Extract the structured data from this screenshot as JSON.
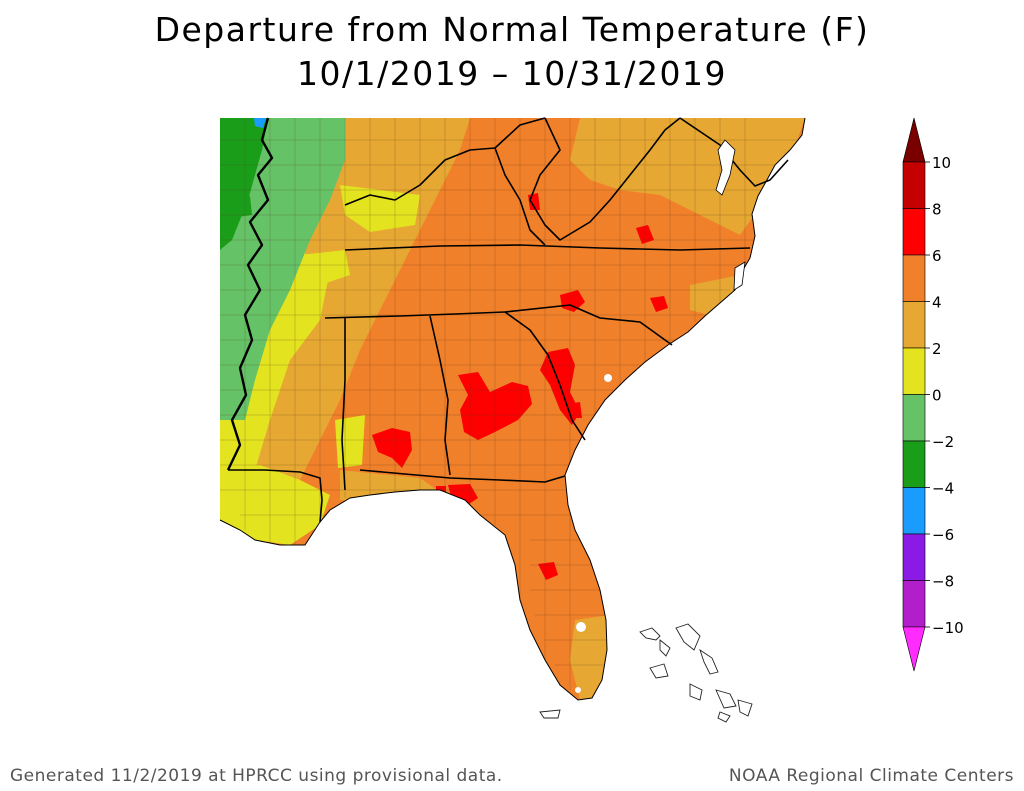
{
  "title": "Departure from Normal Temperature (F)",
  "date_range": "10/1/2019 – 10/31/2019",
  "legend": {
    "bins": [
      {
        "from": 8,
        "to": 10,
        "color": "#c40000"
      },
      {
        "from": 6,
        "to": 8,
        "color": "#ff0000"
      },
      {
        "from": 4,
        "to": 6,
        "color": "#f0802a"
      },
      {
        "from": 2,
        "to": 4,
        "color": "#e6a832"
      },
      {
        "from": 0,
        "to": 2,
        "color": "#e3e320"
      },
      {
        "from": -2,
        "to": 0,
        "color": "#66c266"
      },
      {
        "from": -4,
        "to": -2,
        "color": "#1a9e1a"
      },
      {
        "from": -6,
        "to": -4,
        "color": "#1a9cff"
      },
      {
        "from": -8,
        "to": -6,
        "color": "#8c1ae6"
      },
      {
        "from": -10,
        "to": -8,
        "color": "#b21ecc"
      }
    ],
    "over_color": "#7a0000",
    "under_color": "#ff2bff",
    "tick_labels": [
      "10",
      "8",
      "6",
      "4",
      "2",
      "0",
      "−2",
      "−4",
      "−6",
      "−8",
      "−10"
    ]
  },
  "colors": {
    "ocean": "#ffffff",
    "borders": "#000000"
  },
  "footer_left": "Generated 11/2/2019 at HPRCC using provisional data.",
  "footer_right": "NOAA Regional Climate Centers"
}
